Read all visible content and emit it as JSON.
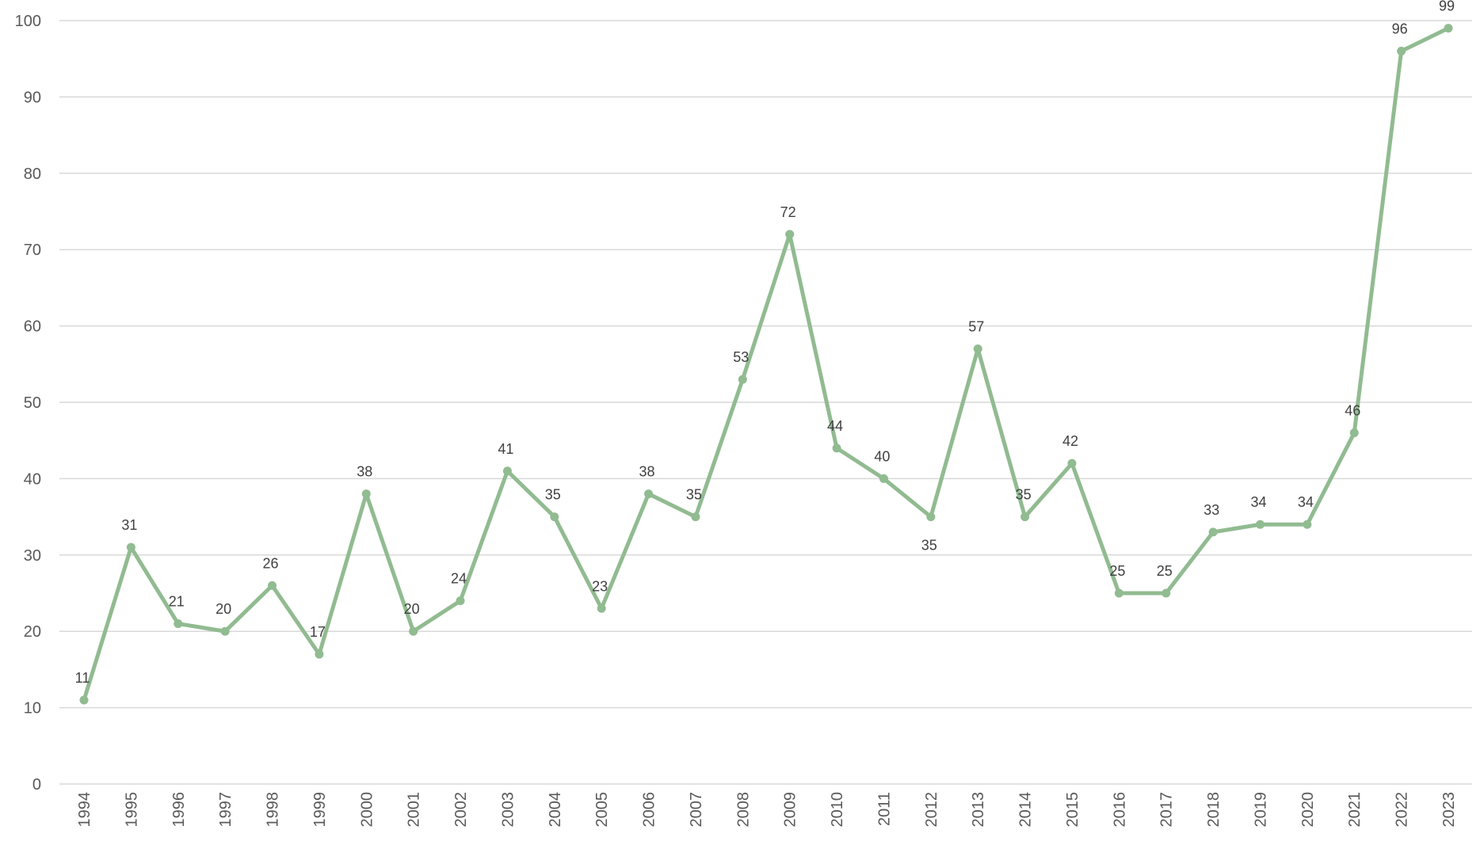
{
  "chart_data": {
    "type": "line",
    "title": "",
    "xlabel": "",
    "ylabel": "",
    "x": [
      "1994",
      "1995",
      "1996",
      "1997",
      "1998",
      "1999",
      "2000",
      "2001",
      "2002",
      "2003",
      "2004",
      "2005",
      "2006",
      "2007",
      "2008",
      "2009",
      "2010",
      "2011",
      "2012",
      "2013",
      "2014",
      "2015",
      "2016",
      "2017",
      "2018",
      "2019",
      "2020",
      "2021",
      "2022",
      "2023"
    ],
    "series": [
      {
        "values": [
          11,
          31,
          21,
          20,
          26,
          17,
          38,
          20,
          24,
          41,
          35,
          23,
          38,
          35,
          53,
          72,
          44,
          40,
          35,
          57,
          35,
          42,
          25,
          25,
          33,
          34,
          34,
          46,
          96,
          99
        ],
        "color": "#91bb91"
      }
    ],
    "ylim": [
      0,
      100
    ],
    "yticks": [
      0,
      10,
      20,
      30,
      40,
      50,
      60,
      70,
      80,
      90,
      100
    ],
    "grid": true,
    "legend": "none",
    "data_labels": true
  }
}
